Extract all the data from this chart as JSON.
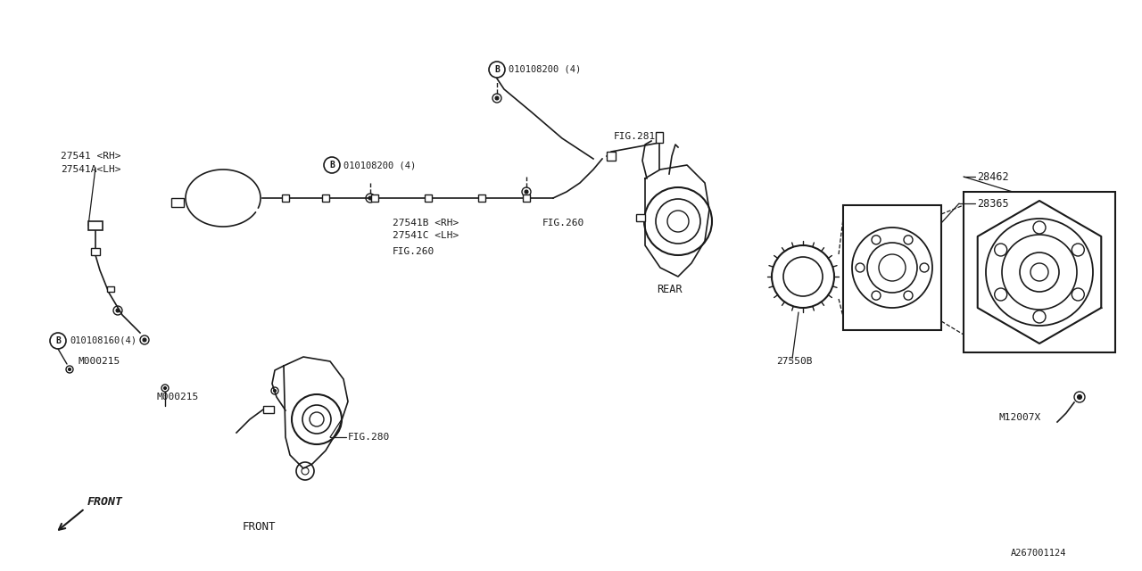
{
  "bg_color": "#ffffff",
  "line_color": "#1a1a1a",
  "diagram_id": "A267001124",
  "labels": {
    "top_left_1": "27541 <RH>",
    "top_left_2": "27541A<LH>",
    "center_bolt_1": "010108200 (4)",
    "center_bolt_2": "010108200 (4)",
    "center_part_rh": "27541B <RH>",
    "center_part_lh": "27541C <LH>",
    "fig260_center": "FIG.260",
    "fig260_right": "FIG.260",
    "fig281": "FIG.281",
    "front_bolt": "010108160(4)",
    "front_m1": "M000215",
    "front_m2": "M000215",
    "fig280": "FIG.280",
    "front_label": "FRONT",
    "front_arrow": "FRONT",
    "rear_label": "REAR",
    "part_28462": "28462",
    "part_28365": "28365",
    "part_27550B": "27550B",
    "part_M12007X": "M12007X"
  }
}
